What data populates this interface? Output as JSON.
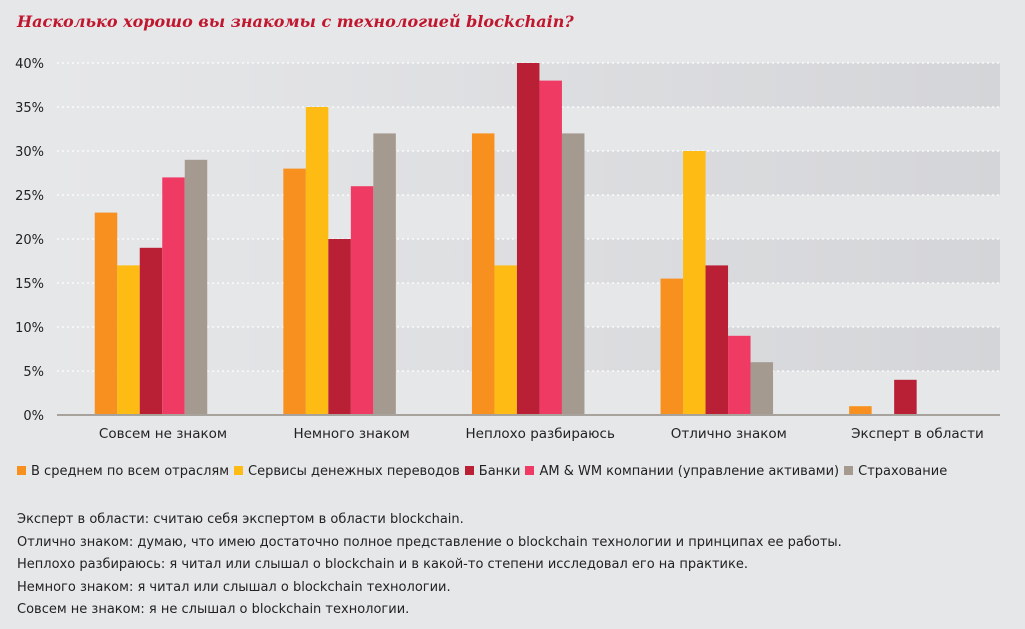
{
  "chart_data": {
    "type": "bar",
    "title": "Насколько хорошо вы знакомы с технологией blockchain?",
    "categories": [
      "Совсем не знаком",
      "Немного знаком",
      "Неплохо разбираюсь",
      "Отлично знаком",
      "Эксперт в области"
    ],
    "ylim": [
      0,
      40
    ],
    "yticks": [
      "0%",
      "5%",
      "10%",
      "15%",
      "20%",
      "25%",
      "30%",
      "35%",
      "40%"
    ],
    "grid": true,
    "legend_position": "bottom",
    "series": [
      {
        "name": "В среднем по всем отраслям",
        "color": "#f7901e",
        "values": [
          23,
          28,
          32,
          15.5,
          1
        ]
      },
      {
        "name": "Сервисы денежных переводов",
        "color": "#fdbb13",
        "values": [
          17,
          35,
          17,
          30,
          0
        ]
      },
      {
        "name": "Банки",
        "color": "#b91f35",
        "values": [
          19,
          20,
          40,
          17,
          4
        ]
      },
      {
        "name": "AM & WM компании (управление активами)",
        "color": "#ef3b63",
        "values": [
          27,
          26,
          38,
          9,
          0
        ]
      },
      {
        "name": "Страхование",
        "color": "#a59a90",
        "values": [
          29,
          32,
          32,
          6,
          0
        ]
      }
    ]
  },
  "notes": [
    "Эксперт в области: считаю себя экспертом в области blockchain.",
    "Отлично знаком: думаю, что имею достаточно полное представление о blockchain технологии и принципах ее работы.",
    "Неплохо разбираюсь: я читал или слышал о blockchain и в какой-то степени исследовал его на практике.",
    "Немного знаком: я читал или слышал о blockchain технологии.",
    "Совсем не знаком: я не слышал о blockchain технологии."
  ]
}
